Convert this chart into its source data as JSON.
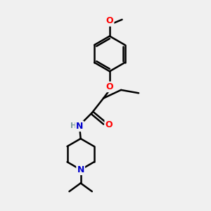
{
  "background_color": "#f0f0f0",
  "bond_color": "#000000",
  "double_bond_color": "#000000",
  "atom_colors": {
    "O": "#ff0000",
    "N": "#0000cc",
    "H": "#7f9f9f",
    "C": "#000000"
  },
  "figsize": [
    3.0,
    3.0
  ],
  "dpi": 100
}
